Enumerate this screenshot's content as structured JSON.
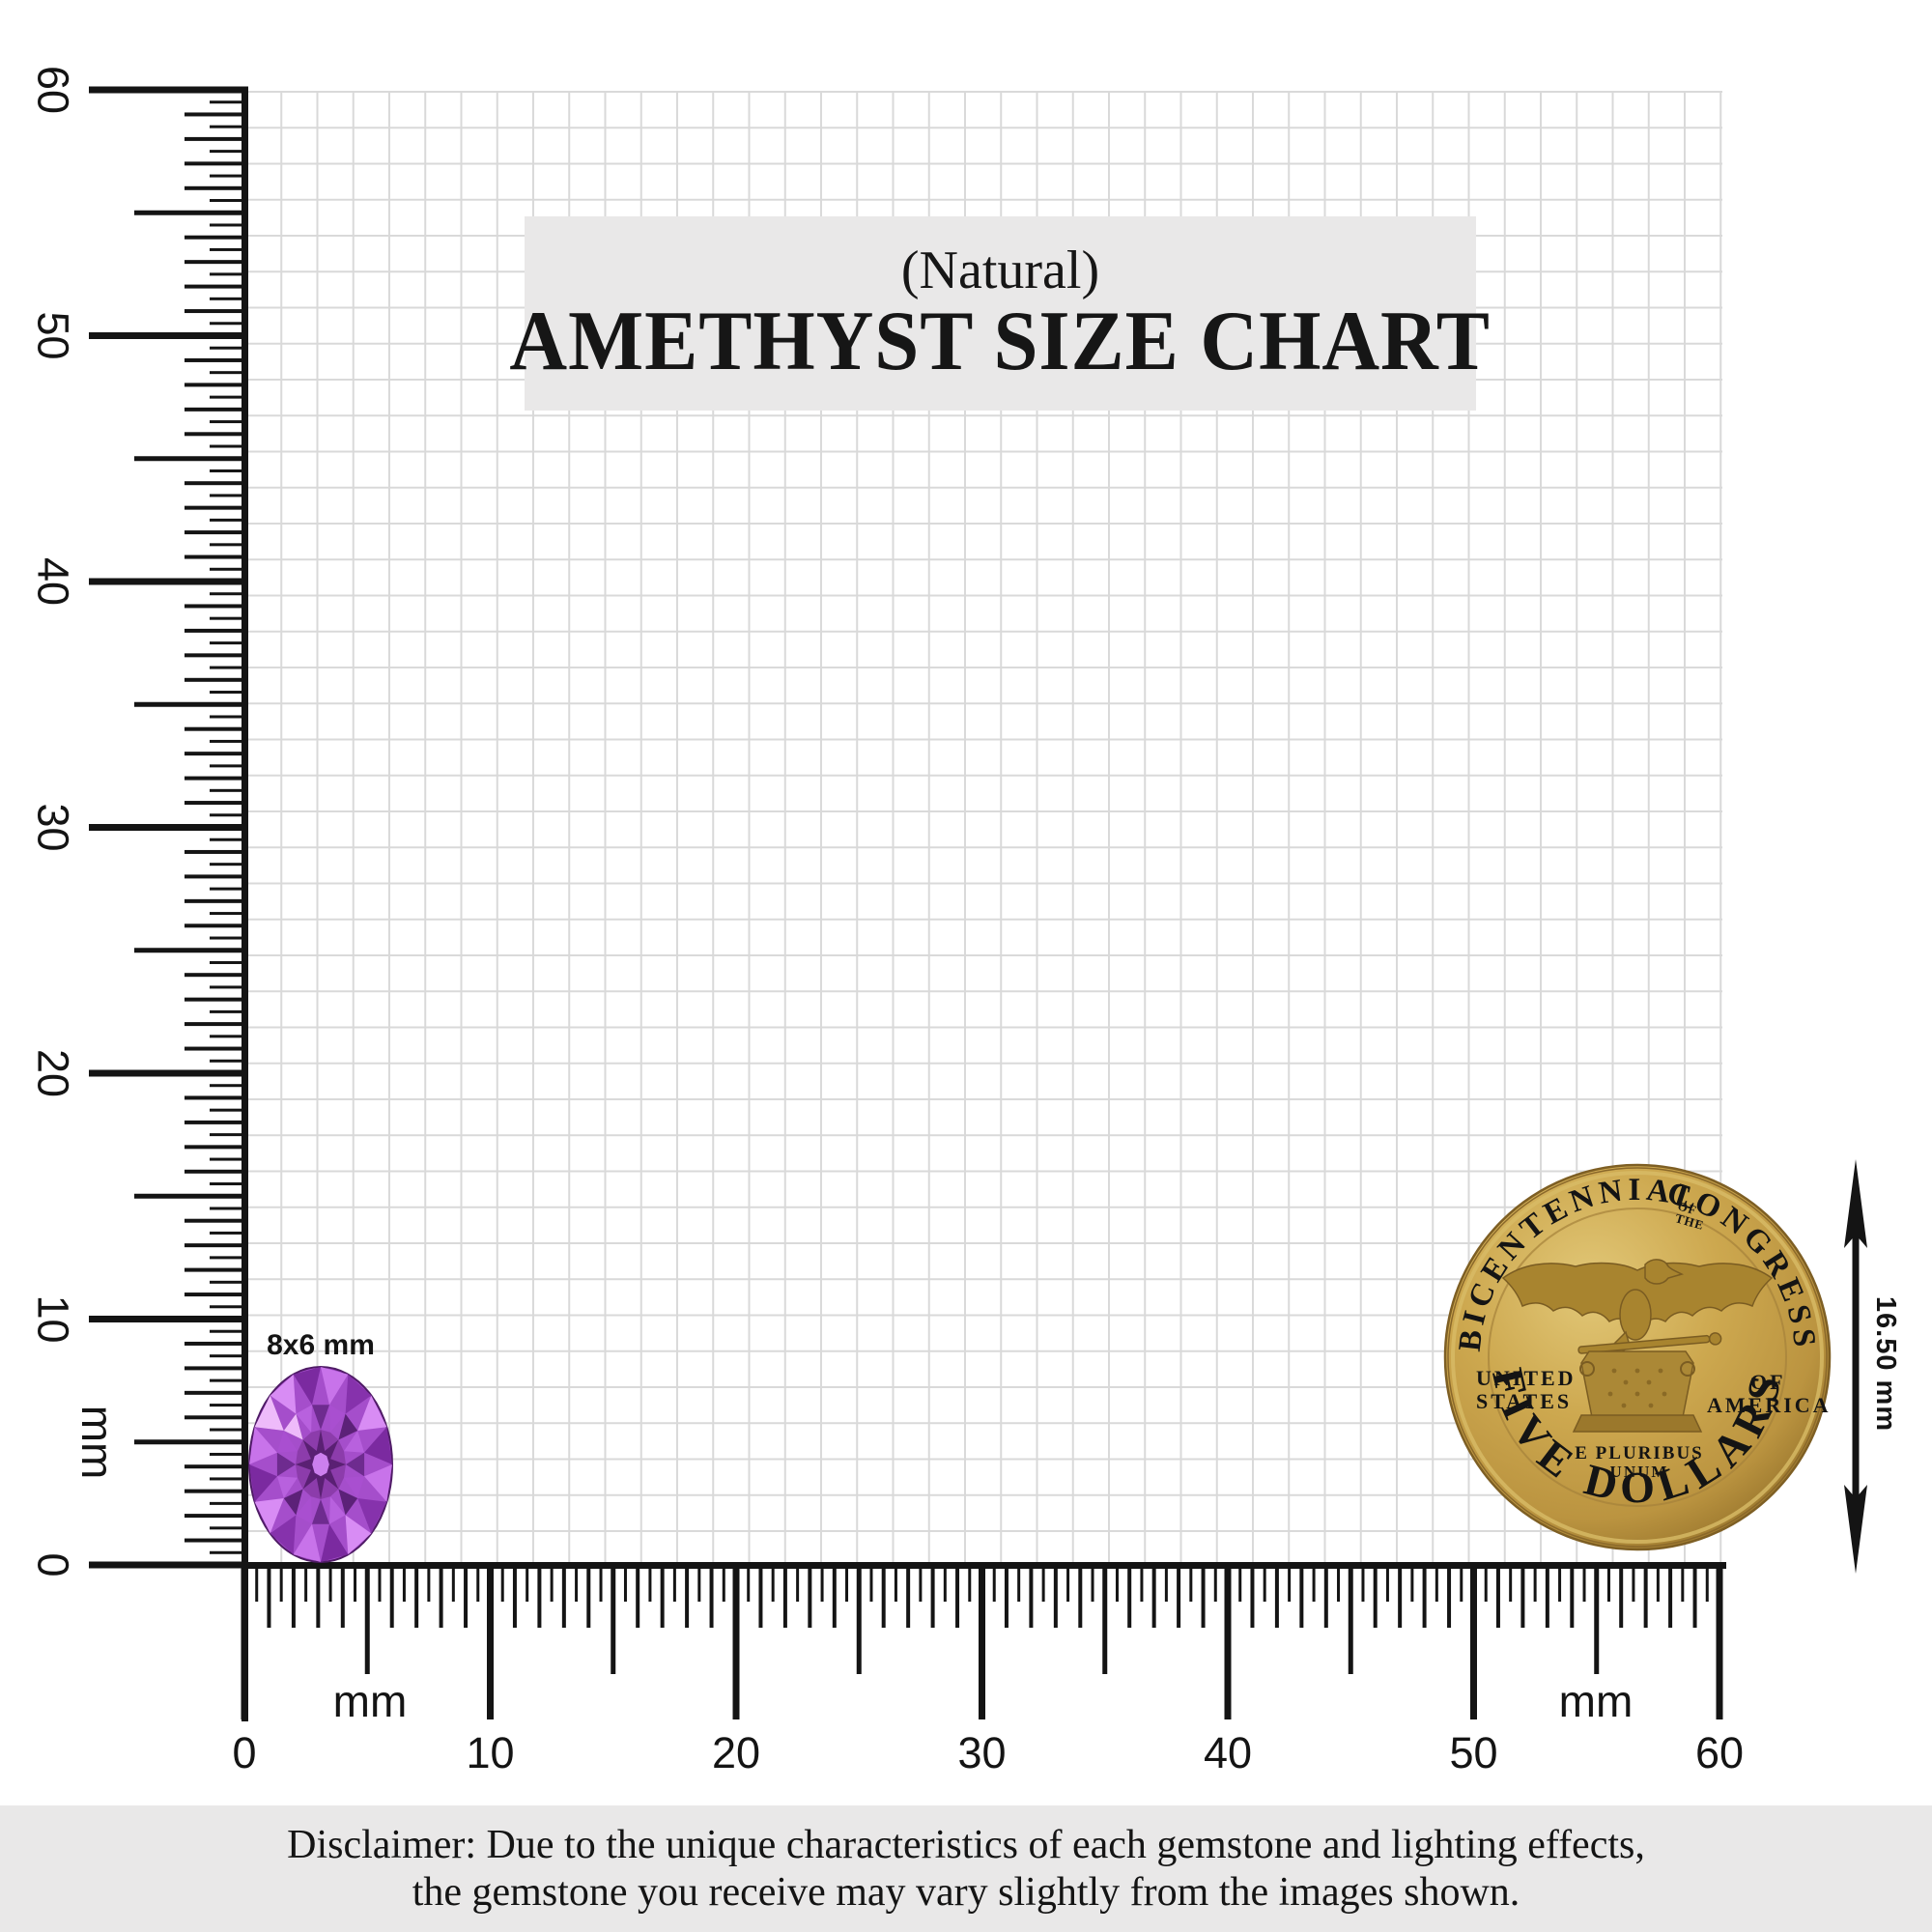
{
  "title": {
    "prefix": "(Natural)",
    "main": "AMETHYST SIZE CHART"
  },
  "rulers": {
    "unit": "mm",
    "range_mm": [
      0,
      60
    ],
    "left": {
      "labels": [
        "0",
        "10",
        "20",
        "30",
        "40",
        "50",
        "60"
      ]
    },
    "bottom": {
      "labels": [
        "0",
        "10",
        "20",
        "30",
        "40",
        "50",
        "60"
      ]
    }
  },
  "gem": {
    "label": "8x6 mm"
  },
  "coin": {
    "legend_top_left": "BICENTENNIAL",
    "legend_top_small": [
      "OF",
      "THE"
    ],
    "legend_top_right": "CONGRESS",
    "left_lines": [
      "UNITED",
      "STATES"
    ],
    "right_lines": [
      "OF",
      "AMERICA"
    ],
    "motto_lines": [
      "E PLURIBUS",
      "UNUM"
    ],
    "denomination": "FIVE DOLLARS",
    "measurement": "16.50 mm"
  },
  "disclaimer": [
    "Disclaimer: Due to the unique characteristics of each gemstone and lighting effects,",
    "the gemstone you receive may vary slightly from the images shown."
  ],
  "colors": {
    "ink": "#141414",
    "grid_line": "#d9d9d9",
    "panel_bg": "#e9e8e8",
    "gold_light": "#e2c878",
    "gold_mid": "#cda84f",
    "gold_dark": "#97742c",
    "gold_ink": "#7e6024",
    "gem_palette": {
      "base": "#a54ecb",
      "edge": "#4f1b66",
      "rim": [
        "#c873ea",
        "#8632ac",
        "#d88cf4",
        "#7b2aa0"
      ],
      "ring": [
        "#6e2b8f",
        "#a94fd0",
        "#5c2178",
        "#b861de"
      ],
      "table": "#8c3cab",
      "star": "#5a2073",
      "core": "#cc7fee",
      "sparkle": "#eebbfa"
    }
  }
}
